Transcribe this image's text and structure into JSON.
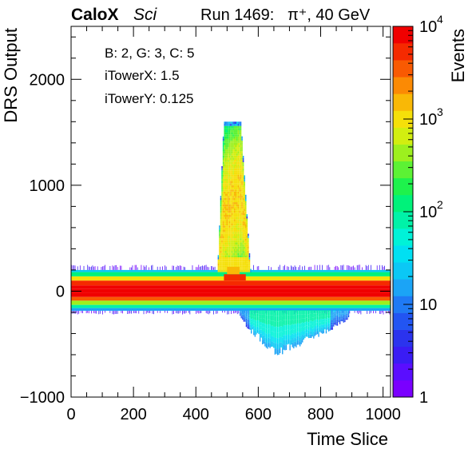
{
  "header": {
    "brand": "CaloX",
    "brand_sub": "Sci",
    "run_info": "Run 1469:   π⁺, 40 GeV"
  },
  "info_lines": [
    "B: 2, G: 3, C: 5",
    "iTowerX: 1.5",
    "iTowerY: 0.125"
  ],
  "chart_data": {
    "type": "heatmap",
    "xlabel": "Time Slice",
    "ylabel": "DRS Output",
    "zlabel": "Events",
    "xlim": [
      0,
      1024
    ],
    "ylim": [
      -1000,
      2500
    ],
    "zlim": [
      1,
      10000
    ],
    "z_scale": "log",
    "x_ticks": [
      0,
      200,
      400,
      600,
      800,
      1000
    ],
    "x_tick_labels": [
      "0",
      "200",
      "400",
      "600",
      "800",
      "1000"
    ],
    "y_ticks": [
      -1000,
      0,
      1000,
      2000
    ],
    "y_tick_labels": [
      "−1000",
      "0",
      "1000",
      "2000"
    ],
    "z_ticks": [
      {
        "base": "10",
        "exp": "4",
        "value": 10000
      },
      {
        "base": "10",
        "exp": "3",
        "value": 1000
      },
      {
        "base": "10",
        "exp": "2",
        "value": 100
      },
      {
        "base": "10",
        "exp": "",
        "value": 10
      },
      {
        "base": "1",
        "exp": "",
        "value": 1
      }
    ],
    "baseline_bands": [
      {
        "y0": -15,
        "y1": 20,
        "z": 10000
      },
      {
        "y0": 20,
        "y1": 55,
        "z": 9000
      },
      {
        "y0": -55,
        "y1": -15,
        "z": 9000
      },
      {
        "y0": 55,
        "y1": 100,
        "z": 6000
      },
      {
        "y0": -90,
        "y1": -55,
        "z": 4000
      },
      {
        "y0": 100,
        "y1": 140,
        "z": 900
      },
      {
        "y0": -130,
        "y1": -90,
        "z": 400
      },
      {
        "y0": 140,
        "y1": 180,
        "z": 120
      },
      {
        "y0": -160,
        "y1": -130,
        "z": 80
      },
      {
        "y0": 180,
        "y1": 200,
        "z": 25
      },
      {
        "y0": -185,
        "y1": -160,
        "z": 18
      },
      {
        "y0": 200,
        "y1": 250,
        "z": 2
      },
      {
        "y0": -220,
        "y1": -185,
        "z": 2
      }
    ],
    "pulse": {
      "x0": 470,
      "x1": 575,
      "peak_x": 512,
      "top": 1600
    },
    "undershoot": {
      "x0": 540,
      "x1": 890,
      "center": 660,
      "depth": -580
    }
  },
  "colors": {
    "palette": [
      "#7a00ff",
      "#5a0eff",
      "#3a1cf4",
      "#2b33ee",
      "#2255f2",
      "#1f7af5",
      "#1ba4f6",
      "#0bc8f5",
      "#00e0f2",
      "#00f2d8",
      "#00f2a8",
      "#00f27a",
      "#1ef24c",
      "#5cf234",
      "#9df01e",
      "#d2ee10",
      "#f5e00a",
      "#f9b806",
      "#fb8a04",
      "#f95a02",
      "#f52a00",
      "#f00000"
    ]
  }
}
